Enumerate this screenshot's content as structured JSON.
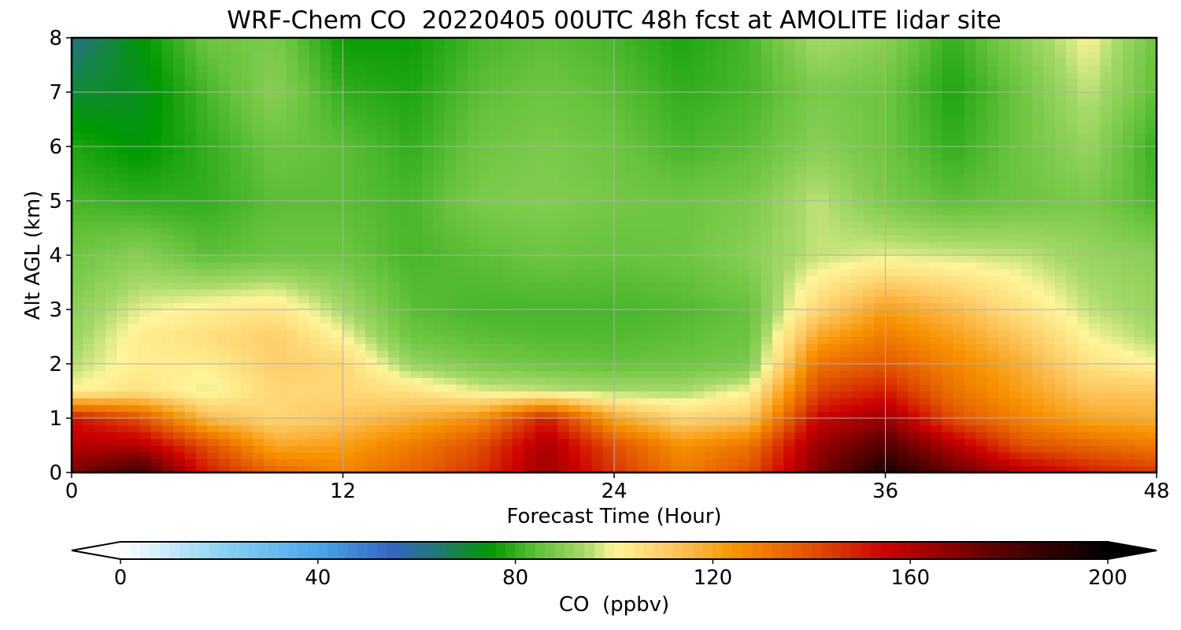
{
  "chart_data": {
    "type": "heatmap",
    "title": "WRF-Chem CO  20220405 00UTC 48h fcst at AMOLITE lidar site",
    "xlabel": "Forecast Time (Hour)",
    "ylabel": "Alt AGL (km)",
    "xlim": [
      0,
      48
    ],
    "ylim": [
      0,
      8
    ],
    "xticks": [
      "0",
      "12",
      "24",
      "36",
      "48"
    ],
    "xtick_values": [
      0,
      12,
      24,
      36,
      48
    ],
    "yticks": [
      "0",
      "1",
      "2",
      "3",
      "4",
      "5",
      "6",
      "7",
      "8"
    ],
    "ytick_values": [
      0,
      1,
      2,
      3,
      4,
      5,
      6,
      7,
      8
    ],
    "grid": true,
    "x_hours": [
      0,
      3,
      6,
      9,
      12,
      15,
      18,
      21,
      24,
      27,
      30,
      33,
      36,
      39,
      42,
      45,
      48
    ],
    "y_km": [
      0,
      0.5,
      1,
      1.5,
      2,
      2.5,
      3,
      4,
      5,
      6,
      7,
      8
    ],
    "values": [
      [
        170,
        185,
        150,
        135,
        128,
        135,
        145,
        165,
        145,
        130,
        140,
        170,
        195,
        175,
        160,
        150,
        145
      ],
      [
        160,
        160,
        140,
        120,
        122,
        130,
        140,
        162,
        140,
        125,
        132,
        165,
        180,
        160,
        140,
        135,
        130
      ],
      [
        152,
        140,
        115,
        108,
        112,
        118,
        125,
        150,
        120,
        108,
        112,
        155,
        165,
        140,
        128,
        120,
        118
      ],
      [
        100,
        105,
        98,
        108,
        108,
        105,
        98,
        96,
        94,
        94,
        100,
        142,
        150,
        132,
        122,
        112,
        112
      ],
      [
        95,
        102,
        102,
        110,
        108,
        92,
        88,
        86,
        85,
        86,
        88,
        132,
        138,
        128,
        118,
        105,
        100
      ],
      [
        92,
        102,
        106,
        110,
        100,
        86,
        84,
        83,
        83,
        84,
        86,
        120,
        130,
        122,
        112,
        100,
        94
      ],
      [
        90,
        98,
        102,
        104,
        94,
        84,
        82,
        82,
        82,
        83,
        85,
        108,
        122,
        115,
        105,
        96,
        92
      ],
      [
        86,
        90,
        84,
        86,
        86,
        82,
        84,
        86,
        85,
        86,
        90,
        96,
        98,
        97,
        96,
        92,
        90
      ],
      [
        82,
        80,
        80,
        84,
        84,
        82,
        88,
        89,
        87,
        86,
        88,
        96,
        88,
        84,
        86,
        88,
        82
      ],
      [
        78,
        74,
        80,
        86,
        84,
        80,
        86,
        88,
        86,
        82,
        84,
        90,
        86,
        80,
        86,
        92,
        80
      ],
      [
        70,
        72,
        82,
        90,
        80,
        78,
        84,
        86,
        84,
        80,
        82,
        88,
        86,
        78,
        86,
        96,
        84
      ],
      [
        62,
        74,
        86,
        88,
        76,
        76,
        82,
        84,
        82,
        78,
        82,
        94,
        90,
        80,
        90,
        100,
        86
      ]
    ],
    "colorbar": {
      "label": "CO  (ppbv)",
      "min": 0,
      "max": 200,
      "ticks": [
        "0",
        "40",
        "80",
        "120",
        "160",
        "200"
      ],
      "tick_values": [
        0,
        40,
        80,
        120,
        160,
        200
      ],
      "extend": "both",
      "colors": [
        {
          "value": 0,
          "color": "#ffffff"
        },
        {
          "value": 20,
          "color": "#8fd3f2"
        },
        {
          "value": 40,
          "color": "#4aa6e8"
        },
        {
          "value": 55,
          "color": "#3366c2"
        },
        {
          "value": 65,
          "color": "#217a6a"
        },
        {
          "value": 75,
          "color": "#009900"
        },
        {
          "value": 85,
          "color": "#66c23c"
        },
        {
          "value": 94,
          "color": "#a6d96a"
        },
        {
          "value": 100,
          "color": "#fff59a"
        },
        {
          "value": 112,
          "color": "#fdc760"
        },
        {
          "value": 125,
          "color": "#f79100"
        },
        {
          "value": 140,
          "color": "#e05000"
        },
        {
          "value": 155,
          "color": "#cc0000"
        },
        {
          "value": 175,
          "color": "#660000"
        },
        {
          "value": 200,
          "color": "#000000"
        }
      ]
    }
  }
}
